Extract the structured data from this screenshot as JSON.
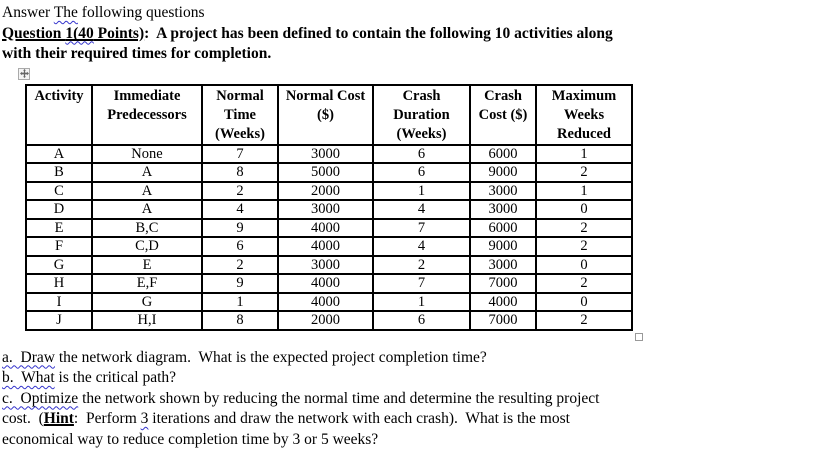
{
  "colors": {
    "squiggle": "#3333cc",
    "text": "#000000",
    "table_border": "#000000"
  },
  "intro": {
    "answer_pre": "Answer ",
    "answer_squiggle": "The",
    "answer_post": " following questions",
    "question_label_part1": "Question ",
    "question_label_squiggle": "1(40",
    "question_label_part2": " Points)",
    "question_rest_line1": ":  A project has been defined to contain the following 10 activities along",
    "question_line2": "with their required times for completion."
  },
  "table": {
    "headers": [
      "Activity",
      "Immediate Predecessors",
      "Normal Time (Weeks)",
      "Normal Cost ($)",
      "Crash Duration (Weeks)",
      "Crash Cost ($)",
      "Maximum Weeks Reduced"
    ],
    "rows": [
      [
        "A",
        "None",
        "7",
        "3000",
        "6",
        "6000",
        "1"
      ],
      [
        "B",
        "A",
        "8",
        "5000",
        "6",
        "9000",
        "2"
      ],
      [
        "C",
        "A",
        "2",
        "2000",
        "1",
        "3000",
        "1"
      ],
      [
        "D",
        "A",
        "4",
        "3000",
        "4",
        "3000",
        "0"
      ],
      [
        "E",
        "B,C",
        "9",
        "4000",
        "7",
        "6000",
        "2"
      ],
      [
        "F",
        "C,D",
        "6",
        "4000",
        "4",
        "9000",
        "2"
      ],
      [
        "G",
        "E",
        "2",
        "3000",
        "2",
        "3000",
        "0"
      ],
      [
        "H",
        "E,F",
        "9",
        "4000",
        "7",
        "7000",
        "2"
      ],
      [
        "I",
        "G",
        "1",
        "4000",
        "1",
        "4000",
        "0"
      ],
      [
        "J",
        "H,I",
        "8",
        "2000",
        "6",
        "7000",
        "2"
      ]
    ]
  },
  "questions": {
    "a_squiggle": "a.  Draw",
    "a_rest": " the network diagram.  What is the expected project completion time?",
    "b_squiggle": "b.  What",
    "b_rest": " is the critical path?",
    "c_squiggle": "c.  Optimize",
    "c_line1_rest": " the network shown by reducing the normal time and determine the resulting project",
    "c_line2_pre": "cost.  (",
    "c_line2_hint": "Hint",
    "c_line2_mid": ":  Perform ",
    "c_line2_squiggle": "3",
    "c_line2_rest": " iterations and draw the network with each crash).  What is the most",
    "c_line3": "economical way to reduce completion time by 3 or 5 weeks?"
  }
}
